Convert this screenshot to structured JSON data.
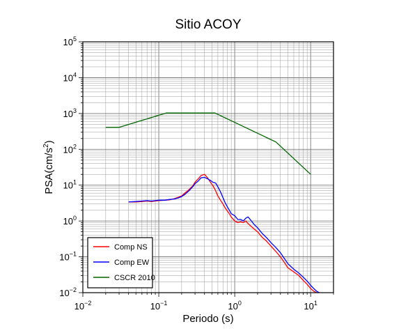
{
  "chart_data": {
    "type": "line",
    "title": "Sitio ACOY",
    "xlabel": "Periodo (s)",
    "ylabel": "PSA(cm/s²)",
    "ylabel_base": "PSA(cm/s",
    "ylabel_sup": "2",
    "ylabel_close": ")",
    "x_scale": "log",
    "y_scale": "log",
    "xlim": [
      0.01,
      20
    ],
    "ylim": [
      0.01,
      100000
    ],
    "grid": true,
    "x_ticks": [
      {
        "value": 0.01,
        "base": "10",
        "exp": "−2"
      },
      {
        "value": 0.1,
        "base": "10",
        "exp": "−1"
      },
      {
        "value": 1,
        "base": "10",
        "exp": "0"
      },
      {
        "value": 10,
        "base": "10",
        "exp": "1"
      }
    ],
    "y_ticks": [
      {
        "value": 0.01,
        "base": "10",
        "exp": "−2"
      },
      {
        "value": 0.1,
        "base": "10",
        "exp": "−1"
      },
      {
        "value": 1,
        "base": "10",
        "exp": "0"
      },
      {
        "value": 10,
        "base": "10",
        "exp": "1"
      },
      {
        "value": 100,
        "base": "10",
        "exp": "2"
      },
      {
        "value": 1000,
        "base": "10",
        "exp": "3"
      },
      {
        "value": 10000,
        "base": "10",
        "exp": "4"
      },
      {
        "value": 100000,
        "base": "10",
        "exp": "5"
      }
    ],
    "legend_position": "bottom-left",
    "series": [
      {
        "name": "Comp NS",
        "color": "#ff0000",
        "x": [
          0.04,
          0.05,
          0.06,
          0.07,
          0.08,
          0.09,
          0.1,
          0.12,
          0.14,
          0.16,
          0.18,
          0.2,
          0.22,
          0.25,
          0.28,
          0.3,
          0.33,
          0.36,
          0.4,
          0.44,
          0.48,
          0.52,
          0.56,
          0.6,
          0.65,
          0.7,
          0.75,
          0.8,
          0.85,
          0.9,
          1.0,
          1.1,
          1.2,
          1.3,
          1.4,
          1.5,
          1.6,
          1.8,
          2.0,
          2.3,
          2.6,
          3.0,
          3.5,
          4.0,
          4.5,
          5.0,
          6.0,
          7.0,
          8.0,
          9.0,
          10.0,
          11.0,
          12.0
        ],
        "y": [
          3.4,
          3.4,
          3.5,
          3.6,
          3.5,
          3.6,
          3.7,
          3.8,
          3.9,
          4.2,
          4.6,
          5.0,
          6.0,
          7.5,
          9.5,
          12.0,
          15.0,
          18.5,
          20.0,
          16.0,
          12.0,
          9.5,
          7.0,
          5.0,
          3.8,
          3.0,
          2.3,
          1.9,
          1.6,
          1.3,
          1.0,
          0.9,
          0.95,
          0.9,
          1.0,
          0.85,
          0.75,
          0.6,
          0.5,
          0.35,
          0.28,
          0.2,
          0.14,
          0.1,
          0.07,
          0.05,
          0.038,
          0.03,
          0.022,
          0.017,
          0.013,
          0.011,
          0.01
        ]
      },
      {
        "name": "Comp EW",
        "color": "#0000ff",
        "x": [
          0.04,
          0.05,
          0.06,
          0.07,
          0.08,
          0.09,
          0.1,
          0.12,
          0.14,
          0.16,
          0.18,
          0.2,
          0.22,
          0.25,
          0.28,
          0.3,
          0.33,
          0.36,
          0.4,
          0.44,
          0.48,
          0.52,
          0.56,
          0.6,
          0.65,
          0.7,
          0.75,
          0.8,
          0.85,
          0.9,
          1.0,
          1.1,
          1.2,
          1.3,
          1.4,
          1.5,
          1.6,
          1.8,
          2.0,
          2.3,
          2.6,
          3.0,
          3.5,
          4.0,
          4.5,
          5.0,
          6.0,
          7.0,
          8.0,
          9.0,
          10.0,
          11.0,
          12.0,
          13.0
        ],
        "y": [
          3.4,
          3.5,
          3.6,
          3.7,
          3.6,
          3.7,
          3.8,
          3.8,
          4.0,
          4.1,
          4.4,
          4.8,
          5.5,
          7.0,
          9.0,
          11.0,
          13.0,
          16.0,
          16.5,
          15.0,
          13.5,
          12.0,
          11.5,
          9.0,
          6.5,
          4.5,
          3.2,
          2.5,
          2.0,
          1.6,
          1.4,
          1.1,
          1.1,
          1.0,
          1.2,
          1.3,
          1.1,
          0.8,
          0.65,
          0.45,
          0.35,
          0.25,
          0.18,
          0.13,
          0.09,
          0.065,
          0.045,
          0.035,
          0.027,
          0.021,
          0.016,
          0.013,
          0.011,
          0.01
        ]
      },
      {
        "name": "CSCR 2010",
        "color": "#006400",
        "x": [
          0.02,
          0.03,
          0.125,
          0.55,
          3.5,
          10.0
        ],
        "y": [
          410,
          410,
          1030,
          1030,
          160,
          20
        ]
      }
    ]
  }
}
